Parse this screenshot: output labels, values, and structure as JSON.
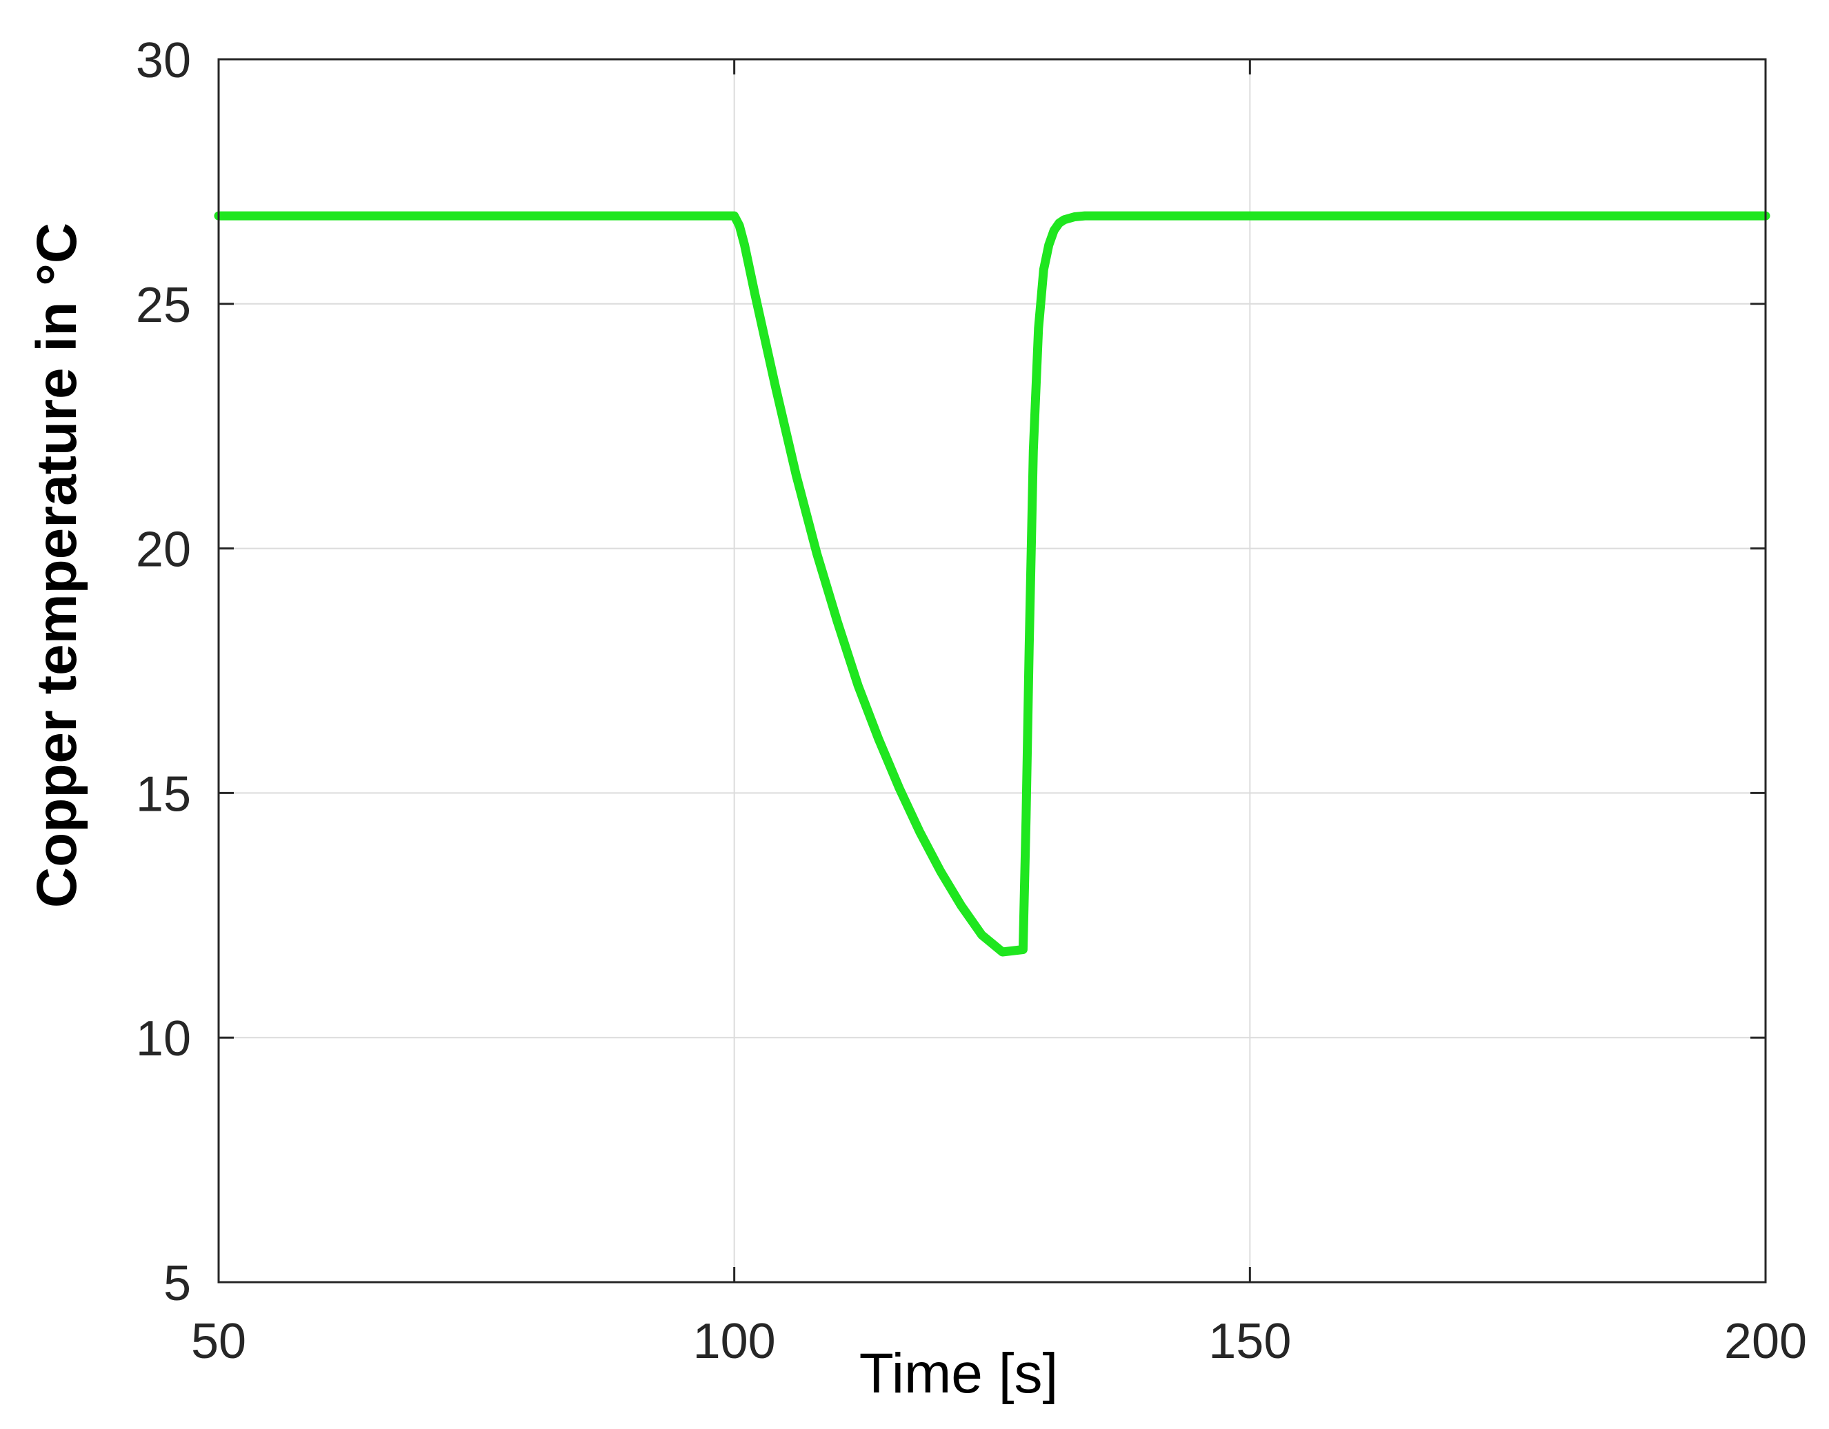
{
  "chart_data": {
    "type": "line",
    "title": "",
    "xlabel": "Time [s]",
    "ylabel": "Copper temperature in °C",
    "xlim": [
      50,
      200
    ],
    "ylim": [
      5,
      30
    ],
    "x_ticks": [
      50,
      100,
      150,
      200
    ],
    "y_ticks": [
      5,
      10,
      15,
      20,
      25,
      30
    ],
    "grid": true,
    "legend": "none",
    "series": [
      {
        "color": "#1fe61f",
        "x": [
          50,
          100,
          100.5,
          101,
          102,
          104,
          106,
          108,
          110,
          112,
          114,
          116,
          118,
          120,
          122,
          124,
          126,
          128,
          128.3,
          128.6,
          129,
          129.5,
          130,
          130.5,
          131,
          131.5,
          132,
          133,
          134,
          136,
          140,
          150,
          200
        ],
        "y": [
          26.8,
          26.8,
          26.6,
          26.2,
          25.2,
          23.3,
          21.5,
          19.9,
          18.5,
          17.2,
          16.1,
          15.1,
          14.2,
          13.4,
          12.7,
          12.1,
          11.75,
          11.8,
          14.5,
          18.0,
          22.0,
          24.5,
          25.7,
          26.2,
          26.5,
          26.65,
          26.72,
          26.78,
          26.8,
          26.8,
          26.8,
          26.8,
          26.8
        ]
      }
    ]
  }
}
